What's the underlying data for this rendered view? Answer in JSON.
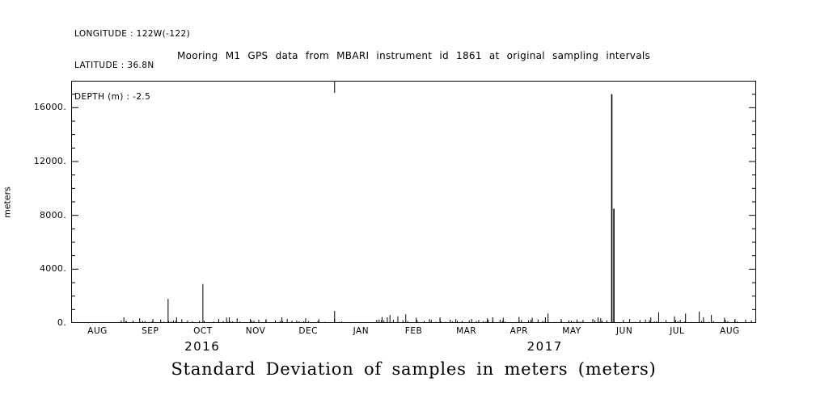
{
  "header": {
    "longitude": "LONGITUDE : 122W(-122)",
    "latitude": "LATITUDE : 36.8N",
    "depth": "DEPTH (m) : -2.5"
  },
  "title": "Mooring M1 GPS data from MBARI instrument id 1861 at original sampling intervals",
  "bottom_title": "Standard Deviation of samples in meters (meters)",
  "chart_data": {
    "type": "line",
    "subtype": "vertical-spike-series",
    "title": "Mooring M1 GPS data from MBARI instrument id 1861 at original sampling intervals",
    "xlabel": "Standard Deviation of samples in meters (meters)",
    "ylabel": "meters",
    "ylim": [
      0,
      18000
    ],
    "xlim_months": [
      0,
      13
    ],
    "grid": false,
    "line_color": "#000000",
    "ytick_values": [
      0,
      4000,
      8000,
      12000,
      16000
    ],
    "ytick_labels": [
      "0.",
      "4000.",
      "8000.",
      "12000.",
      "16000."
    ],
    "y_minor_step": 1000,
    "month_labels": [
      "AUG",
      "SEP",
      "OCT",
      "NOV",
      "DEC",
      "JAN",
      "FEB",
      "MAR",
      "APR",
      "MAY",
      "JUN",
      "JUL",
      "AUG"
    ],
    "year_labels": [
      {
        "label": "2016",
        "x_month": 2.49
      },
      {
        "label": "2017",
        "x_month": 8.99
      }
    ],
    "year_boundary_month": 5,
    "spikes": [
      [
        1.05,
        120
      ],
      [
        1.3,
        350
      ],
      [
        1.55,
        300
      ],
      [
        1.7,
        250
      ],
      [
        1.84,
        1800
      ],
      [
        2.1,
        280
      ],
      [
        2.5,
        2900
      ],
      [
        2.8,
        300
      ],
      [
        2.95,
        400
      ],
      [
        3.15,
        350
      ],
      [
        3.4,
        300
      ],
      [
        3.7,
        280
      ],
      [
        4.1,
        300
      ],
      [
        4.45,
        350
      ],
      [
        4.7,
        280
      ],
      [
        5.0,
        300
      ],
      [
        5.9,
        450
      ],
      [
        6.05,
        600
      ],
      [
        6.2,
        500
      ],
      [
        6.35,
        650
      ],
      [
        6.55,
        400
      ],
      [
        6.8,
        300
      ],
      [
        7.0,
        320
      ],
      [
        7.3,
        280
      ],
      [
        7.6,
        300
      ],
      [
        7.9,
        350
      ],
      [
        8.2,
        400
      ],
      [
        8.5,
        450
      ],
      [
        8.75,
        400
      ],
      [
        9.05,
        700
      ],
      [
        9.3,
        300
      ],
      [
        9.6,
        260
      ],
      [
        9.9,
        300
      ],
      [
        10.05,
        350
      ],
      [
        10.26,
        17000
      ],
      [
        10.3,
        8500
      ],
      [
        10.6,
        300
      ],
      [
        10.9,
        260
      ],
      [
        11.15,
        800
      ],
      [
        11.45,
        500
      ],
      [
        11.66,
        700
      ],
      [
        11.92,
        850
      ],
      [
        12.15,
        600
      ],
      [
        12.4,
        400
      ],
      [
        12.6,
        300
      ],
      [
        12.8,
        250
      ]
    ],
    "noise_bands": [
      {
        "x_start": 0.95,
        "x_end": 5.15,
        "step": 0.045,
        "seed": 11,
        "max": 240
      },
      {
        "x_start": 5.8,
        "x_end": 13.0,
        "step": 0.045,
        "seed": 29,
        "max": 260
      }
    ]
  }
}
